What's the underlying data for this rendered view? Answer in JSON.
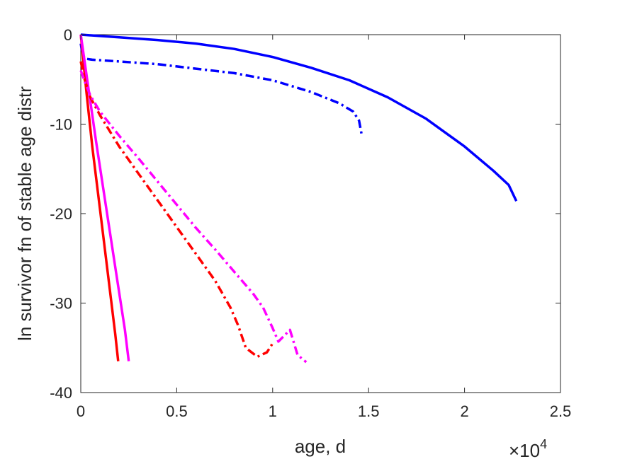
{
  "chart_data": {
    "type": "line",
    "title": "",
    "xlabel": "age, d",
    "ylabel": "ln survivor fn of stable age distr",
    "x_exponent_label": "×10",
    "x_exponent_power": "4",
    "xlim": [
      0,
      25000
    ],
    "ylim": [
      -40,
      0
    ],
    "xticks": [
      0,
      5000,
      10000,
      15000,
      20000,
      25000
    ],
    "xtick_labels": [
      "0",
      "0.5",
      "1",
      "1.5",
      "2",
      "2.5"
    ],
    "yticks": [
      0,
      -10,
      -20,
      -30,
      -40
    ],
    "ytick_labels": [
      "0",
      "-10",
      "-20",
      "-30",
      "-40"
    ],
    "grid": false,
    "legend": "none",
    "series": [
      {
        "color": "#0000ff",
        "style": "solid",
        "x": [
          0,
          2000,
          4000,
          6000,
          8000,
          10000,
          12000,
          14000,
          16000,
          18000,
          20000,
          21500,
          22300,
          22700
        ],
        "y": [
          0,
          -0.3,
          -0.6,
          -1.0,
          -1.6,
          -2.5,
          -3.7,
          -5.1,
          -7.0,
          -9.4,
          -12.5,
          -15.2,
          -16.8,
          -18.6
        ]
      },
      {
        "color": "#0000ff",
        "style": "dashdot",
        "x": [
          0,
          100,
          300,
          600,
          2000,
          4000,
          6000,
          8000,
          10000,
          12000,
          13500,
          14200,
          14500,
          14650
        ],
        "y": [
          -1,
          -2.3,
          -2.7,
          -2.8,
          -3.0,
          -3.3,
          -3.8,
          -4.3,
          -5.1,
          -6.4,
          -7.7,
          -8.6,
          -9.6,
          -11.3
        ]
      },
      {
        "color": "#ff0000",
        "style": "solid",
        "x": [
          0,
          300,
          600,
          1000,
          1400,
          1800,
          1950
        ],
        "y": [
          0,
          -6.5,
          -12.5,
          -19.5,
          -26.5,
          -33.5,
          -36.5
        ]
      },
      {
        "color": "#ff00ff",
        "style": "solid",
        "x": [
          0,
          400,
          800,
          1300,
          1800,
          2300,
          2500
        ],
        "y": [
          0,
          -6.0,
          -12.0,
          -19.0,
          -26.0,
          -33.0,
          -36.5
        ]
      },
      {
        "color": "#ff0000",
        "style": "dashdot",
        "x": [
          0,
          200,
          500,
          1000,
          2000,
          3000,
          4000,
          5000,
          6000,
          7000,
          7800,
          8200,
          8600,
          9200,
          9700,
          10000
        ],
        "y": [
          -3,
          -5,
          -7,
          -9,
          -12.5,
          -15.5,
          -18.5,
          -21.5,
          -24.5,
          -27.5,
          -30.5,
          -32.5,
          -35.0,
          -36.0,
          -35.5,
          -34.5
        ]
      },
      {
        "color": "#ff00ff",
        "style": "dashdot",
        "x": [
          0,
          200,
          500,
          1000,
          2000,
          3000,
          4000,
          5000,
          6000,
          7000,
          8000,
          9000,
          9500,
          10000,
          10300,
          10900,
          11300,
          11750
        ],
        "y": [
          -4,
          -5.2,
          -6.8,
          -8.6,
          -11.3,
          -13.8,
          -16.4,
          -19.0,
          -21.6,
          -24.0,
          -26.5,
          -29.0,
          -30.5,
          -32.8,
          -34.3,
          -33.0,
          -35.8,
          -36.6
        ]
      }
    ]
  }
}
